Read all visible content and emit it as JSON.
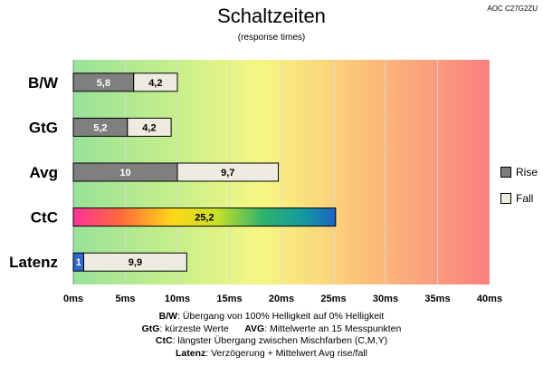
{
  "model": "AOC C27G2ZU",
  "title": "Schaltzeiten",
  "subtitle": "(response times)",
  "chart_data": {
    "type": "bar",
    "orientation": "horizontal",
    "stacked": true,
    "categories": [
      "B/W",
      "GtG",
      "Avg",
      "CtC",
      "Latenz"
    ],
    "series": [
      {
        "name": "Rise",
        "values": [
          5.8,
          5.2,
          10,
          null,
          1
        ],
        "labels": [
          "5,8",
          "5,2",
          "10",
          "",
          "1"
        ],
        "color": "#7f7f7f"
      },
      {
        "name": "Fall",
        "values": [
          4.2,
          4.2,
          9.7,
          null,
          9.9
        ],
        "labels": [
          "4,2",
          "4,2",
          "9,7",
          "",
          "9,9"
        ],
        "color": "#eeece1"
      },
      {
        "name": "",
        "values": [
          null,
          null,
          null,
          25.2,
          null
        ],
        "labels": [
          "",
          "",
          "",
          "25,2",
          ""
        ],
        "color": "gradient"
      }
    ],
    "latenz_rise_color": "#3366cc",
    "x_ticks": [
      "0ms",
      "5ms",
      "10ms",
      "15ms",
      "20ms",
      "25ms",
      "30ms",
      "35ms",
      "40ms"
    ],
    "xlim": [
      0,
      40
    ],
    "background": "green-yellow-red gradient",
    "legend_position": "right"
  },
  "notes": [
    {
      "k1": "B/W",
      "t1": ":  Übergang von 100% Helligkeit auf 0% Helligkeit"
    },
    {
      "k1": "GtG",
      "t1": ": kürzeste  Werte",
      "k2": "AVG",
      "t2": ": Mittelwerte  an 15 Messpunkten"
    },
    {
      "k1": "CtC",
      "t1": ": längster Übergang  zwischen Mischfarben (C,M,Y)"
    },
    {
      "k1": "Latenz",
      "t1": ": Verzögerung  + Mittelwert Avg rise/fall"
    }
  ]
}
